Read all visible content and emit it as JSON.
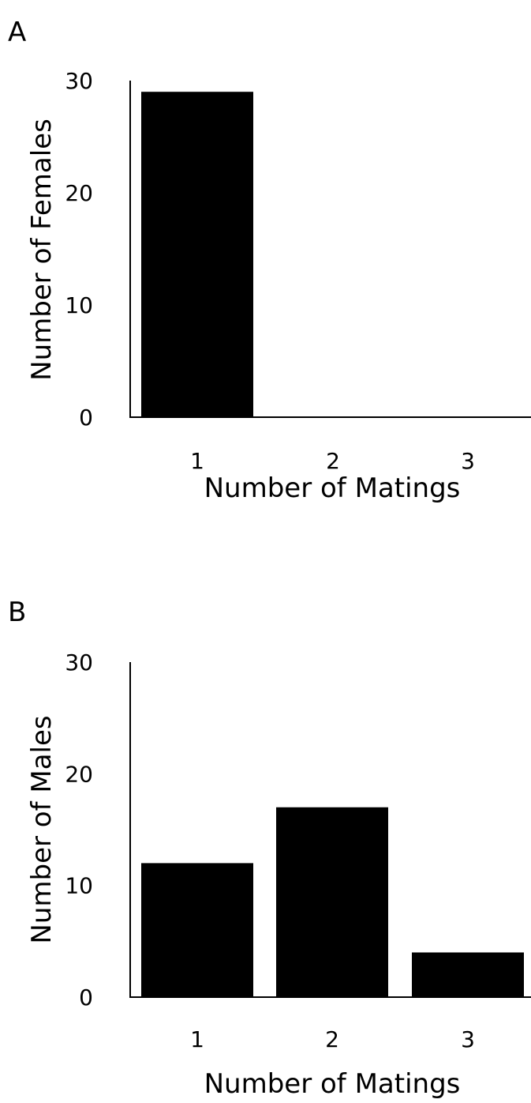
{
  "chart_data": [
    {
      "type": "bar",
      "panel_label": "A",
      "categories": [
        "1",
        "2",
        "3"
      ],
      "values": [
        29,
        0,
        0
      ],
      "xlabel": "Number of Matings",
      "ylabel": "Number of Females",
      "ylim": [
        0,
        30
      ],
      "yticks": [
        "0",
        "10",
        "20",
        "30"
      ],
      "grid": false,
      "bar_color": "#000000"
    },
    {
      "type": "bar",
      "panel_label": "B",
      "categories": [
        "1",
        "2",
        "3"
      ],
      "values": [
        12,
        17,
        4
      ],
      "xlabel": "Number of Matings",
      "ylabel": "Number of Males",
      "ylim": [
        0,
        30
      ],
      "yticks": [
        "0",
        "10",
        "20",
        "30"
      ],
      "grid": false,
      "bar_color": "#000000"
    }
  ]
}
